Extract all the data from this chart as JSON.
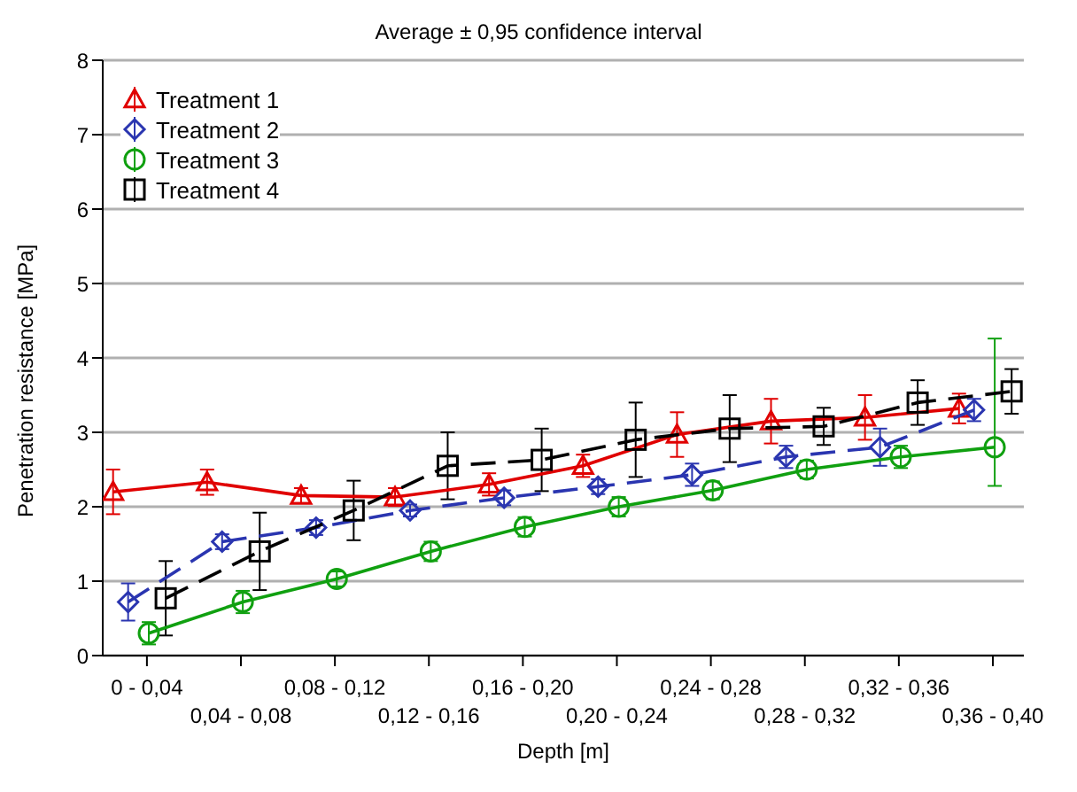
{
  "chart_data": {
    "type": "line",
    "title": "Average ± 0,95 confidence interval",
    "xlabel": "Depth [m]",
    "ylabel": "Penetration resistance [MPa]",
    "categories": [
      "0 - 0,04",
      "0,04 - 0,08",
      "0,08 - 0,12",
      "0,12 - 0,16",
      "0,16 - 0,20",
      "0,20 - 0,24",
      "0,24 - 0,28",
      "0,28 - 0,32",
      "0,32 - 0,36",
      "0,36 - 0,40"
    ],
    "ylim": [
      0,
      8
    ],
    "yticks": [
      0,
      1,
      2,
      3,
      4,
      5,
      6,
      7,
      8
    ],
    "grid": "y",
    "legend": "top left",
    "series": [
      {
        "name": "Treatment 1",
        "color": "#e00000",
        "marker": "triangle",
        "line_style": "solid",
        "values": [
          2.2,
          2.33,
          2.15,
          2.13,
          2.3,
          2.55,
          2.97,
          3.15,
          3.2,
          3.32
        ],
        "errors": [
          0.3,
          0.17,
          0.1,
          0.12,
          0.15,
          0.15,
          0.3,
          0.3,
          0.3,
          0.2
        ]
      },
      {
        "name": "Treatment 2",
        "color": "#2a35b0",
        "marker": "diamond",
        "line_style": "dashed",
        "values": [
          0.72,
          1.53,
          1.72,
          1.95,
          2.12,
          2.27,
          2.43,
          2.67,
          2.8,
          3.3
        ],
        "errors": [
          0.25,
          0.1,
          0.1,
          0.08,
          0.1,
          0.1,
          0.15,
          0.15,
          0.25,
          0.15
        ]
      },
      {
        "name": "Treatment 3",
        "color": "#10a010",
        "marker": "circle",
        "line_style": "solid",
        "values": [
          0.3,
          0.72,
          1.03,
          1.4,
          1.73,
          2.0,
          2.22,
          2.5,
          2.67,
          2.8
        ],
        "errors": [
          0.15,
          0.15,
          0.1,
          0.13,
          0.13,
          0.13,
          0.12,
          0.12,
          0.15,
          [
            2.28,
            4.26
          ]
        ]
      },
      {
        "name": "Treatment 4",
        "color": "#000000",
        "marker": "square",
        "line_style": "dashed",
        "values": [
          0.77,
          1.4,
          1.95,
          2.55,
          2.63,
          2.9,
          3.05,
          3.08,
          3.4,
          3.55
        ],
        "errors": [
          0.5,
          0.52,
          0.4,
          0.45,
          0.42,
          0.5,
          0.45,
          0.25,
          0.3,
          0.3
        ]
      }
    ]
  }
}
